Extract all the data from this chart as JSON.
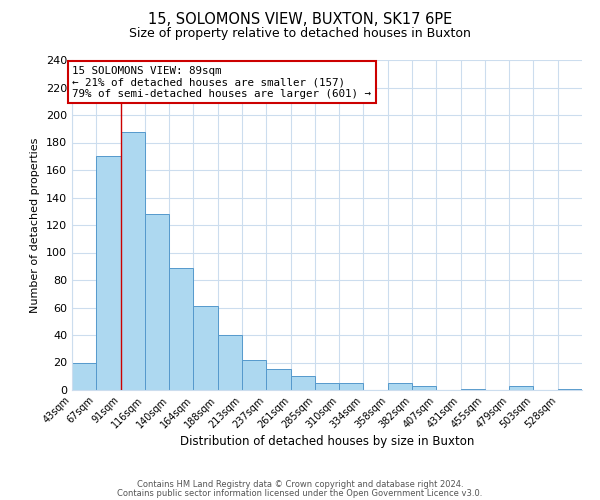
{
  "title": "15, SOLOMONS VIEW, BUXTON, SK17 6PE",
  "subtitle": "Size of property relative to detached houses in Buxton",
  "xlabel": "Distribution of detached houses by size in Buxton",
  "ylabel": "Number of detached properties",
  "bin_labels": [
    "43sqm",
    "67sqm",
    "91sqm",
    "116sqm",
    "140sqm",
    "164sqm",
    "188sqm",
    "213sqm",
    "237sqm",
    "261sqm",
    "285sqm",
    "310sqm",
    "334sqm",
    "358sqm",
    "382sqm",
    "407sqm",
    "431sqm",
    "455sqm",
    "479sqm",
    "503sqm",
    "528sqm"
  ],
  "bar_heights": [
    20,
    170,
    188,
    128,
    89,
    61,
    40,
    22,
    15,
    10,
    5,
    5,
    0,
    5,
    3,
    0,
    1,
    0,
    3,
    0,
    1
  ],
  "bar_color": "#add8f0",
  "bar_edge_color": "#5599cc",
  "vline_x": 2,
  "vline_color": "#cc0000",
  "ylim": [
    0,
    240
  ],
  "yticks": [
    0,
    20,
    40,
    60,
    80,
    100,
    120,
    140,
    160,
    180,
    200,
    220,
    240
  ],
  "annotation_title": "15 SOLOMONS VIEW: 89sqm",
  "annotation_line1": "← 21% of detached houses are smaller (157)",
  "annotation_line2": "79% of semi-detached houses are larger (601) →",
  "annotation_box_color": "#ffffff",
  "annotation_box_edge": "#cc0000",
  "footer_line1": "Contains HM Land Registry data © Crown copyright and database right 2024.",
  "footer_line2": "Contains public sector information licensed under the Open Government Licence v3.0.",
  "background_color": "#ffffff",
  "grid_color": "#ccddee"
}
